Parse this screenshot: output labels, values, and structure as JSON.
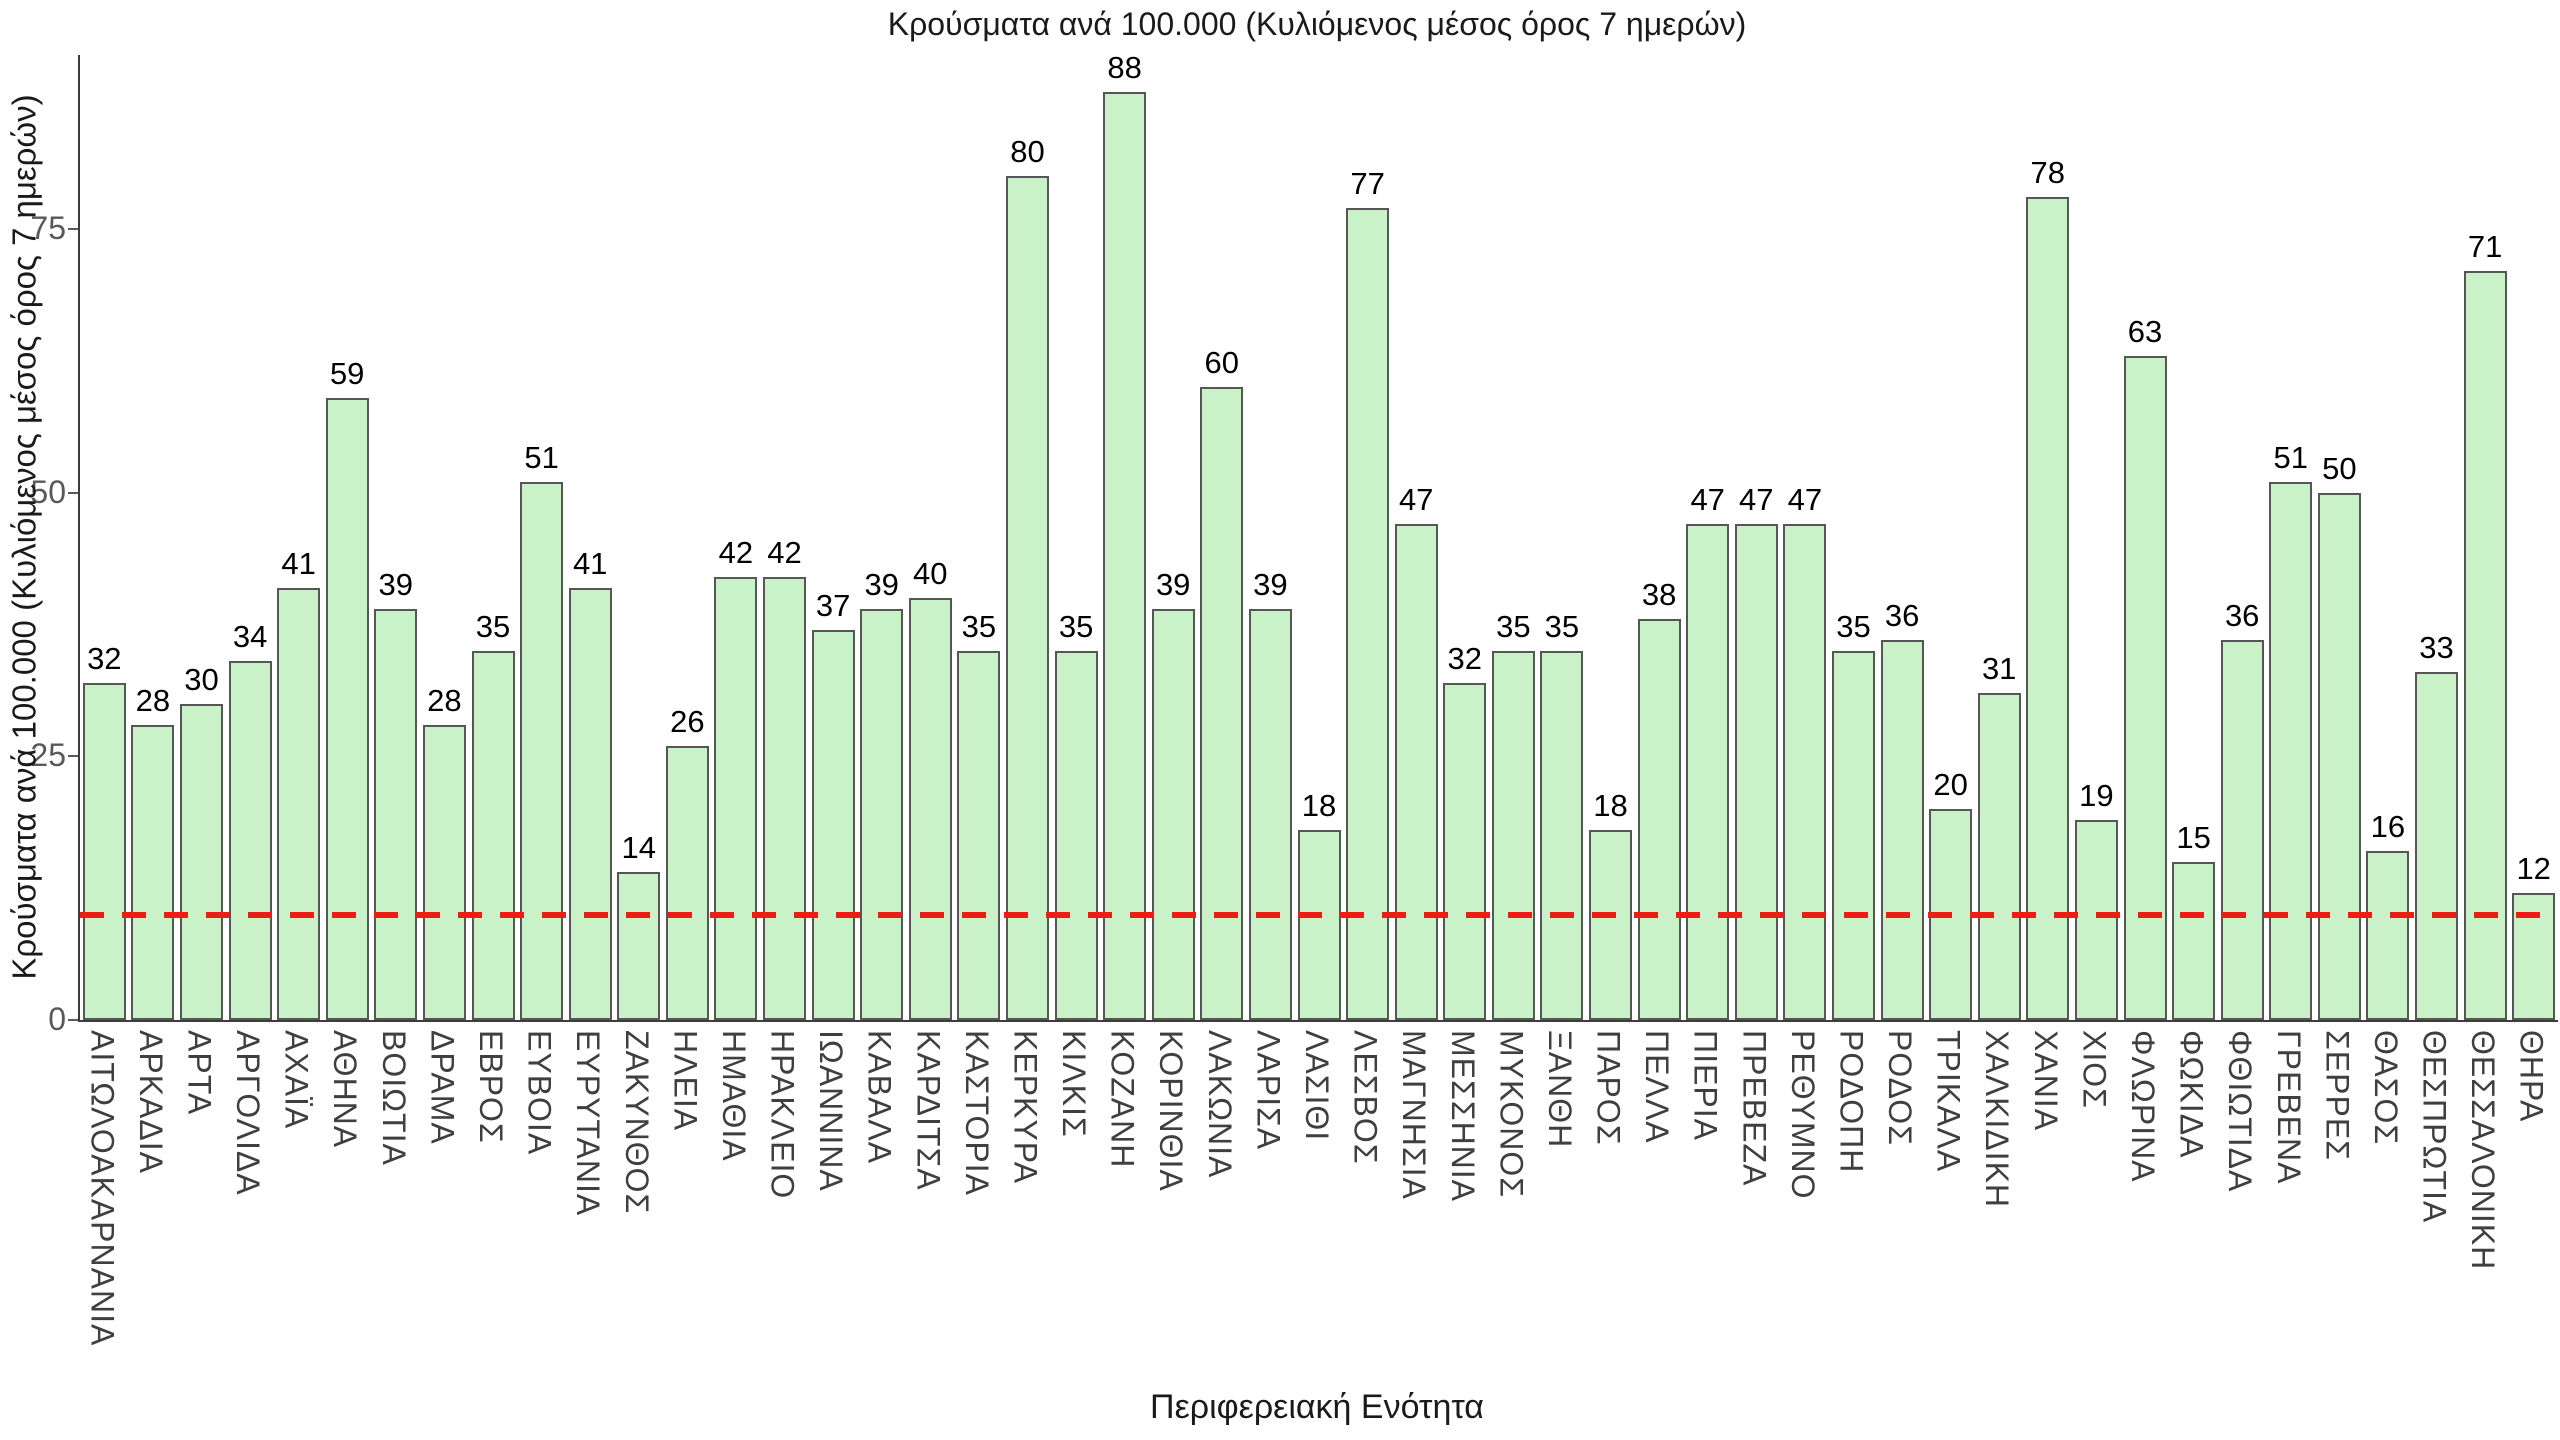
{
  "chart_data": {
    "type": "bar",
    "title": "Κρούσματα ανά 100.000 (Κυλιόμενος μέσος όρος 7 ημερών)",
    "xlabel": "Περιφερειακή Ενότητα",
    "ylabel": "Κρούσματα ανά 100.000 (Κυλιόμενος μέσος όρος 7 ημερών)",
    "categories": [
      "ΑΙΤΩΛΟΑΚΑΡΝΑΝΙΑ",
      "ΑΡΚΑΔΙΑ",
      "ΑΡΤΑ",
      "ΑΡΓΟΛΙΔΑ",
      "ΑΧΑΪΑ",
      "ΑΘΗΝΑ",
      "ΒΟΙΩΤΙΑ",
      "ΔΡΑΜΑ",
      "ΕΒΡΟΣ",
      "ΕΥΒΟΙΑ",
      "ΕΥΡΥΤΑΝΙΑ",
      "ΖΑΚΥΝΘΟΣ",
      "ΗΛΕΙΑ",
      "ΗΜΑΘΙΑ",
      "ΗΡΑΚΛΕΙΟ",
      "ΙΩΑΝΝΙΝΑ",
      "ΚΑΒΑΛΑ",
      "ΚΑΡΔΙΤΣΑ",
      "ΚΑΣΤΟΡΙΑ",
      "ΚΕΡΚΥΡΑ",
      "ΚΙΛΚΙΣ",
      "ΚΟΖΑΝΗ",
      "ΚΟΡΙΝΘΙΑ",
      "ΛΑΚΩΝΙΑ",
      "ΛΑΡΙΣΑ",
      "ΛΑΣΙΘΙ",
      "ΛΕΣΒΟΣ",
      "ΜΑΓΝΗΣΙΑ",
      "ΜΕΣΣΗΝΙΑ",
      "ΜΥΚΟΝΟΣ",
      "ΞΑΝΘΗ",
      "ΠΑΡΟΣ",
      "ΠΕΛΛΑ",
      "ΠΙΕΡΙΑ",
      "ΠΡΕΒΕΖΑ",
      "ΡΕΘΥΜΝΟ",
      "ΡΟΔΟΠΗ",
      "ΡΟΔΟΣ",
      "ΤΡΙΚΑΛΑ",
      "ΧΑΛΚΙΔΙΚΗ",
      "ΧΑΝΙΑ",
      "ΧΙΟΣ",
      "ΦΛΩΡΙΝΑ",
      "ΦΩΚΙΔΑ",
      "ΦΘΙΩΤΙΔΑ",
      "ΓΡΕΒΕΝΑ",
      "ΣΕΡΡΕΣ",
      "ΘΑΣΟΣ",
      "ΘΕΣΠΡΩΤΙΑ",
      "ΘΕΣΣΑΛΟΝΙΚΗ",
      "ΘΗΡΑ"
    ],
    "values": [
      32,
      28,
      30,
      34,
      41,
      59,
      39,
      28,
      35,
      51,
      41,
      14,
      26,
      42,
      42,
      37,
      39,
      40,
      35,
      80,
      35,
      88,
      39,
      60,
      39,
      18,
      77,
      47,
      32,
      35,
      35,
      18,
      38,
      47,
      47,
      47,
      35,
      36,
      20,
      31,
      78,
      19,
      63,
      15,
      36,
      51,
      50,
      16,
      33,
      71,
      12
    ],
    "yticks": [
      0,
      25,
      50,
      75
    ],
    "ylim": [
      0,
      91.5
    ],
    "grid": false,
    "legend": null,
    "threshold_line": {
      "value": 10,
      "style": "dashed",
      "color": "#ed1c16"
    },
    "colors": {
      "bar_fill": "#c9f2c9",
      "bar_border": "#565656",
      "axis_spine": "#3c3c3c",
      "tick_label": "#595959",
      "category_label": "#3f3f3f",
      "value_label": "#000000",
      "background": "#ffffff"
    }
  }
}
